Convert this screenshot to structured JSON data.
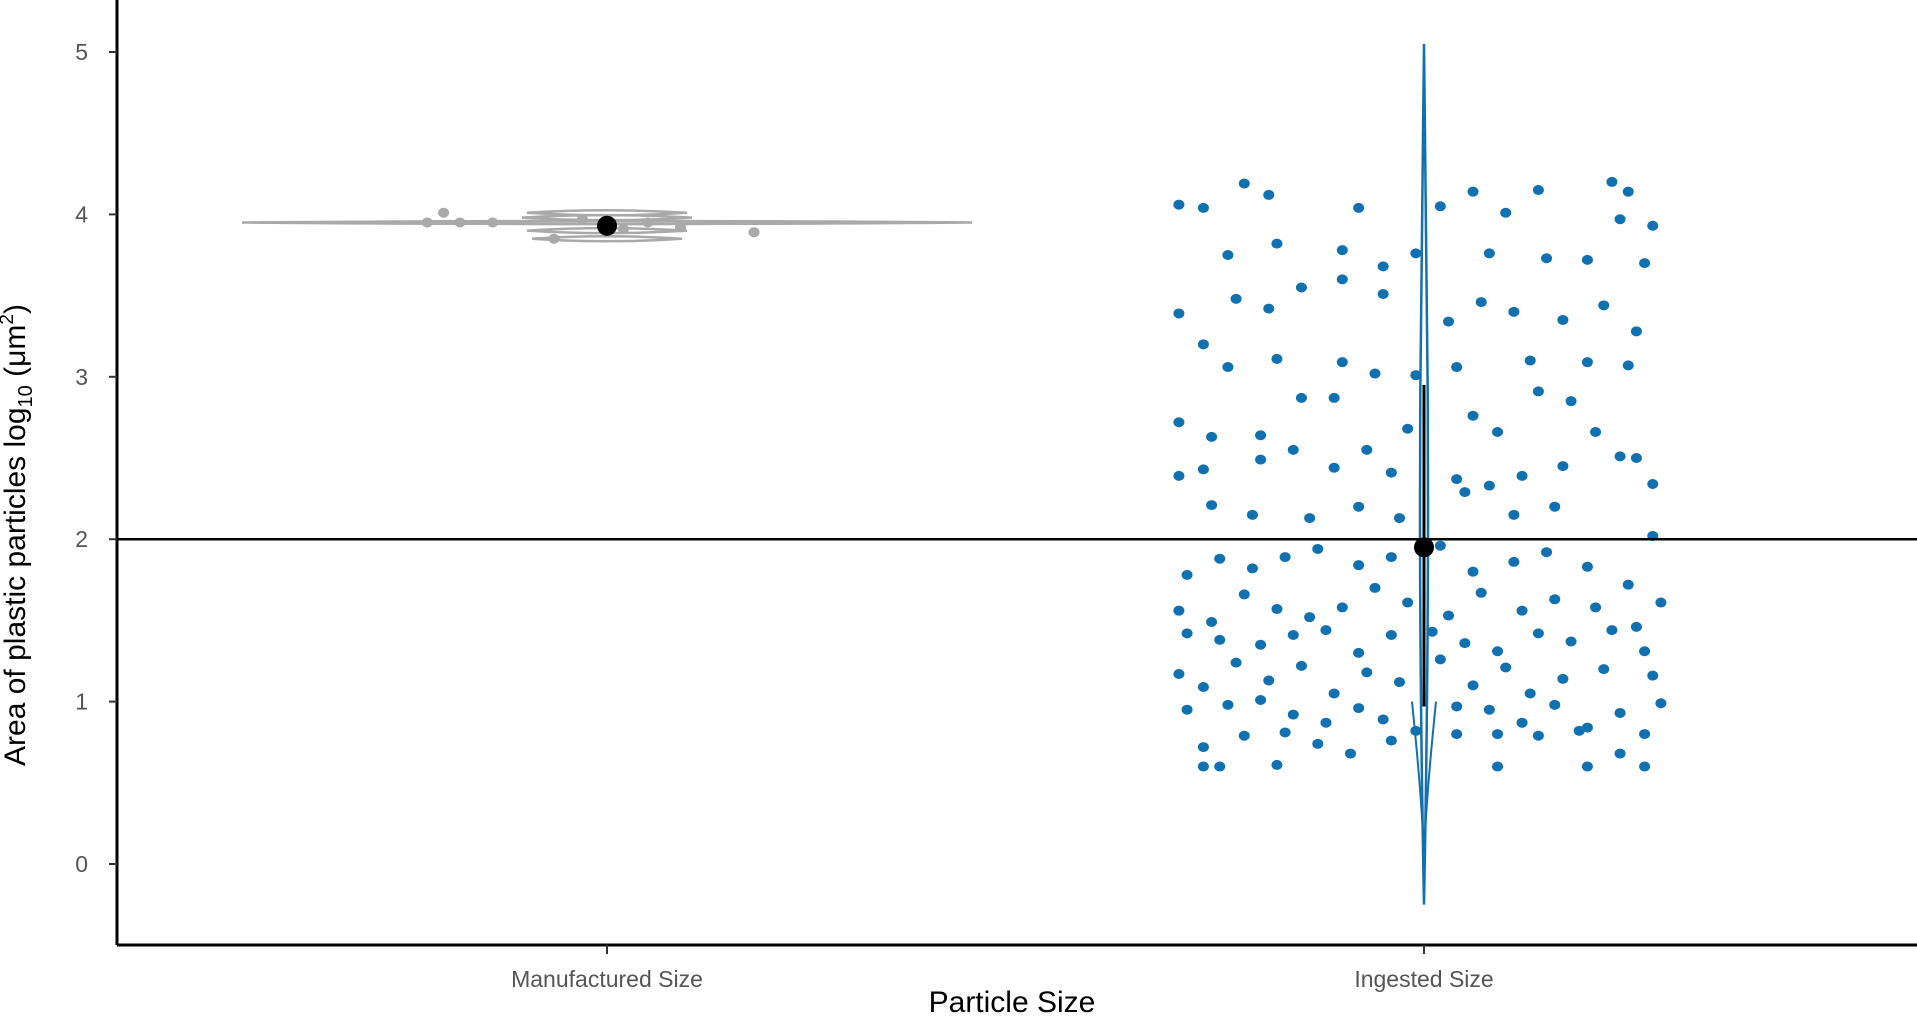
{
  "chart_data": {
    "type": "scatter",
    "subtype": "jittered strip plot with violin overlays, mean and error bars",
    "xlabel": "Particle Size",
    "ylabel_main": "Area of plastic particles log",
    "ylabel_sub": "10",
    "ylabel_unit_pre": " (μm",
    "ylabel_sup": "2",
    "ylabel_unit_post": ")",
    "categories": [
      "Manufactured Size",
      "Ingested Size"
    ],
    "ylim": [
      -0.5,
      5.3
    ],
    "yticks": [
      "0",
      "1",
      "2",
      "3",
      "4",
      "5"
    ],
    "reference_line_y": 2,
    "grid": false,
    "legend": "none",
    "colors": {
      "Manufactured Size": "#a9a9a9",
      "Ingested Size": "#1170b0",
      "mean": "#000000",
      "reference_line": "#000000"
    },
    "series": [
      {
        "category": "Manufactured Size",
        "mean": 3.93,
        "error_low": 3.9,
        "error_high": 3.96,
        "violin_range": [
          3.83,
          4.02
        ],
        "points": [
          [
            -0.22,
            3.95
          ],
          [
            -0.18,
            3.95
          ],
          [
            -0.14,
            3.95
          ],
          [
            -0.2,
            4.01
          ],
          [
            -0.065,
            3.85
          ],
          [
            0.05,
            3.95
          ],
          [
            0.18,
            3.89
          ],
          [
            0.09,
            3.92
          ],
          [
            -0.03,
            3.97
          ],
          [
            0.02,
            3.91
          ]
        ]
      },
      {
        "category": "Ingested Size",
        "mean": 1.95,
        "error_low": 0.97,
        "error_high": 2.95,
        "violin_range": [
          -0.25,
          5.05
        ],
        "points": [
          [
            -0.3,
            4.06
          ],
          [
            -0.27,
            4.04
          ],
          [
            -0.22,
            4.19
          ],
          [
            -0.19,
            4.12
          ],
          [
            -0.08,
            4.04
          ],
          [
            0.02,
            4.05
          ],
          [
            0.06,
            4.14
          ],
          [
            0.1,
            4.01
          ],
          [
            0.14,
            4.15
          ],
          [
            0.23,
            4.2
          ],
          [
            0.25,
            4.14
          ],
          [
            0.28,
            3.93
          ],
          [
            -0.24,
            3.75
          ],
          [
            -0.18,
            3.82
          ],
          [
            -0.1,
            3.78
          ],
          [
            -0.05,
            3.68
          ],
          [
            -0.01,
            3.76
          ],
          [
            0.08,
            3.76
          ],
          [
            0.15,
            3.73
          ],
          [
            0.2,
            3.72
          ],
          [
            0.24,
            3.97
          ],
          [
            0.27,
            3.7
          ],
          [
            -0.3,
            3.39
          ],
          [
            -0.27,
            3.2
          ],
          [
            -0.23,
            3.48
          ],
          [
            -0.19,
            3.42
          ],
          [
            -0.15,
            3.55
          ],
          [
            -0.1,
            3.6
          ],
          [
            -0.05,
            3.51
          ],
          [
            0.03,
            3.34
          ],
          [
            0.07,
            3.46
          ],
          [
            0.11,
            3.4
          ],
          [
            0.17,
            3.35
          ],
          [
            0.22,
            3.44
          ],
          [
            0.26,
            3.28
          ],
          [
            -0.24,
            3.06
          ],
          [
            -0.18,
            3.11
          ],
          [
            -0.1,
            3.09
          ],
          [
            -0.06,
            3.02
          ],
          [
            -0.01,
            3.01
          ],
          [
            0.04,
            3.06
          ],
          [
            0.13,
            3.1
          ],
          [
            0.2,
            3.09
          ],
          [
            0.25,
            3.07
          ],
          [
            -0.3,
            2.72
          ],
          [
            -0.26,
            2.63
          ],
          [
            -0.2,
            2.64
          ],
          [
            -0.15,
            2.87
          ],
          [
            -0.11,
            2.87
          ],
          [
            -0.07,
            2.55
          ],
          [
            -0.02,
            2.68
          ],
          [
            0.06,
            2.76
          ],
          [
            0.09,
            2.66
          ],
          [
            0.14,
            2.91
          ],
          [
            0.18,
            2.85
          ],
          [
            0.21,
            2.66
          ],
          [
            0.26,
            2.5
          ],
          [
            -0.3,
            2.39
          ],
          [
            -0.27,
            2.43
          ],
          [
            -0.2,
            2.49
          ],
          [
            -0.16,
            2.55
          ],
          [
            -0.11,
            2.44
          ],
          [
            -0.04,
            2.41
          ],
          [
            0.04,
            2.37
          ],
          [
            0.08,
            2.33
          ],
          [
            0.12,
            2.39
          ],
          [
            0.17,
            2.45
          ],
          [
            0.24,
            2.51
          ],
          [
            0.28,
            2.34
          ],
          [
            -0.26,
            2.21
          ],
          [
            -0.21,
            2.15
          ],
          [
            -0.14,
            2.13
          ],
          [
            -0.08,
            2.2
          ],
          [
            -0.03,
            2.13
          ],
          [
            0.05,
            2.29
          ],
          [
            0.11,
            2.15
          ],
          [
            0.16,
            2.2
          ],
          [
            0.28,
            2.02
          ],
          [
            -0.29,
            1.78
          ],
          [
            -0.25,
            1.88
          ],
          [
            -0.21,
            1.82
          ],
          [
            -0.17,
            1.89
          ],
          [
            -0.13,
            1.94
          ],
          [
            -0.08,
            1.84
          ],
          [
            -0.04,
            1.89
          ],
          [
            0.02,
            1.96
          ],
          [
            0.06,
            1.8
          ],
          [
            0.11,
            1.86
          ],
          [
            0.15,
            1.92
          ],
          [
            0.2,
            1.83
          ],
          [
            0.25,
            1.72
          ],
          [
            0.29,
            1.61
          ],
          [
            -0.3,
            1.56
          ],
          [
            -0.26,
            1.49
          ],
          [
            -0.22,
            1.66
          ],
          [
            -0.18,
            1.57
          ],
          [
            -0.14,
            1.52
          ],
          [
            -0.1,
            1.58
          ],
          [
            -0.06,
            1.7
          ],
          [
            -0.02,
            1.61
          ],
          [
            0.03,
            1.53
          ],
          [
            0.07,
            1.67
          ],
          [
            0.12,
            1.56
          ],
          [
            0.16,
            1.63
          ],
          [
            0.21,
            1.58
          ],
          [
            0.26,
            1.46
          ],
          [
            -0.29,
            1.42
          ],
          [
            -0.25,
            1.38
          ],
          [
            -0.2,
            1.35
          ],
          [
            -0.16,
            1.41
          ],
          [
            -0.12,
            1.44
          ],
          [
            -0.08,
            1.3
          ],
          [
            -0.04,
            1.41
          ],
          [
            0.01,
            1.43
          ],
          [
            0.05,
            1.36
          ],
          [
            0.09,
            1.31
          ],
          [
            0.14,
            1.42
          ],
          [
            0.18,
            1.37
          ],
          [
            0.23,
            1.44
          ],
          [
            0.27,
            1.31
          ],
          [
            -0.3,
            1.17
          ],
          [
            -0.27,
            1.09
          ],
          [
            -0.23,
            1.24
          ],
          [
            -0.19,
            1.13
          ],
          [
            -0.15,
            1.22
          ],
          [
            -0.11,
            1.05
          ],
          [
            -0.07,
            1.18
          ],
          [
            -0.03,
            1.12
          ],
          [
            0.02,
            1.26
          ],
          [
            0.06,
            1.1
          ],
          [
            0.1,
            1.21
          ],
          [
            0.13,
            1.05
          ],
          [
            0.17,
            1.14
          ],
          [
            0.22,
            1.2
          ],
          [
            0.28,
            1.16
          ],
          [
            -0.29,
            0.95
          ],
          [
            -0.24,
            0.98
          ],
          [
            -0.2,
            1.01
          ],
          [
            -0.16,
            0.92
          ],
          [
            -0.12,
            0.87
          ],
          [
            -0.08,
            0.96
          ],
          [
            -0.05,
            0.89
          ],
          [
            -0.01,
            0.82
          ],
          [
            0.04,
            0.97
          ],
          [
            0.08,
            0.95
          ],
          [
            0.12,
            0.87
          ],
          [
            0.16,
            0.98
          ],
          [
            0.2,
            0.84
          ],
          [
            0.24,
            0.93
          ],
          [
            0.29,
            0.99
          ],
          [
            -0.27,
            0.72
          ],
          [
            -0.22,
            0.79
          ],
          [
            -0.17,
            0.81
          ],
          [
            -0.13,
            0.74
          ],
          [
            -0.09,
            0.68
          ],
          [
            -0.04,
            0.76
          ],
          [
            0.04,
            0.8
          ],
          [
            0.09,
            0.8
          ],
          [
            0.14,
            0.79
          ],
          [
            0.19,
            0.82
          ],
          [
            0.24,
            0.68
          ],
          [
            0.27,
            0.8
          ],
          [
            -0.27,
            0.6
          ],
          [
            -0.25,
            0.6
          ],
          [
            -0.18,
            0.61
          ],
          [
            0.09,
            0.6
          ],
          [
            0.2,
            0.6
          ],
          [
            0.27,
            0.6
          ]
        ]
      }
    ]
  }
}
